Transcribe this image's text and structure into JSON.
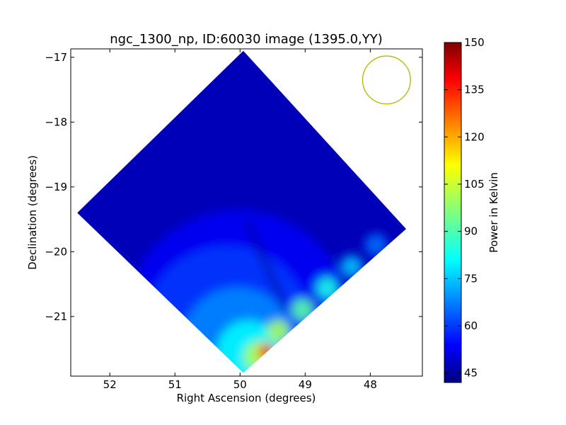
{
  "chart_data": {
    "type": "heatmap",
    "title": "ngc_1300_np, ID:60030 image (1395.0,YY)",
    "xlabel": "Right Ascension (degrees)",
    "ylabel": "Declination (degrees)",
    "xlim": [
      52.6,
      47.2
    ],
    "ylim": [
      -21.92,
      -16.87
    ],
    "x_ticks": [
      52,
      51,
      50,
      49,
      48
    ],
    "y_ticks": [
      -17,
      -18,
      -19,
      -20,
      -21
    ],
    "x_tick_labels": [
      "52",
      "51",
      "50",
      "49",
      "48"
    ],
    "y_tick_labels": [
      "−17",
      "−18",
      "−19",
      "−20",
      "−21"
    ],
    "colorbar": {
      "label": "Power in Kelvin",
      "range": [
        42,
        150
      ],
      "ticks": [
        45,
        60,
        75,
        90,
        105,
        120,
        135,
        150
      ],
      "colormap": "jet"
    },
    "map_footprint": {
      "shape": "diamond",
      "vertices": [
        [
          49.95,
          -16.9
        ],
        [
          47.45,
          -19.65
        ],
        [
          49.95,
          -21.87
        ],
        [
          52.5,
          -19.4
        ]
      ]
    },
    "hotspot": {
      "ra": 49.6,
      "dec": -21.55,
      "value": 145
    },
    "background_level": 48,
    "beam_marker": {
      "ra": 47.75,
      "dec": -17.35,
      "radius_deg": 0.37,
      "color": "#b5b500"
    }
  }
}
